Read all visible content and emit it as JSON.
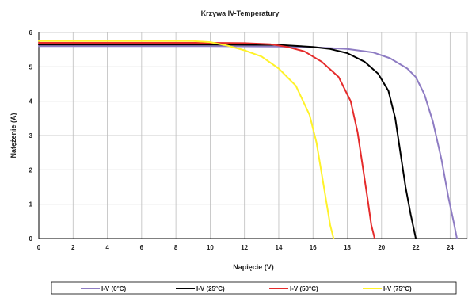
{
  "chart_data": {
    "type": "line",
    "title": "Krzywa IV-Temperatury",
    "xlabel": "Napięcie (V)",
    "ylabel": "Natężenie (A)",
    "xlim": [
      0,
      25
    ],
    "ylim": [
      0,
      6
    ],
    "xticks": [
      "0",
      "2",
      "4",
      "6",
      "8",
      "10",
      "12",
      "14",
      "16",
      "18",
      "20",
      "22",
      "24"
    ],
    "yticks": [
      "0",
      "1",
      "2",
      "3",
      "4",
      "5",
      "6"
    ],
    "grid": true,
    "legend_position": "bottom",
    "series": [
      {
        "name": "I-V (0°C)",
        "color": "#8e7cc3",
        "points": [
          [
            0,
            5.6
          ],
          [
            10,
            5.6
          ],
          [
            14,
            5.59
          ],
          [
            16,
            5.57
          ],
          [
            18,
            5.52
          ],
          [
            19.5,
            5.42
          ],
          [
            20.5,
            5.25
          ],
          [
            21.5,
            4.95
          ],
          [
            22,
            4.7
          ],
          [
            22.5,
            4.2
          ],
          [
            23,
            3.4
          ],
          [
            23.5,
            2.3
          ],
          [
            23.9,
            1.2
          ],
          [
            24.2,
            0.5
          ],
          [
            24.4,
            0
          ]
        ]
      },
      {
        "name": "I-V (25°C)",
        "color": "#000000",
        "points": [
          [
            0,
            5.65
          ],
          [
            10,
            5.65
          ],
          [
            14,
            5.64
          ],
          [
            16,
            5.58
          ],
          [
            17,
            5.52
          ],
          [
            18,
            5.4
          ],
          [
            19,
            5.15
          ],
          [
            19.8,
            4.8
          ],
          [
            20.4,
            4.3
          ],
          [
            20.8,
            3.5
          ],
          [
            21.1,
            2.5
          ],
          [
            21.4,
            1.5
          ],
          [
            21.7,
            0.7
          ],
          [
            22,
            0
          ]
        ]
      },
      {
        "name": "I-V (50°C)",
        "color": "#e52b2b",
        "points": [
          [
            0,
            5.7
          ],
          [
            10,
            5.7
          ],
          [
            12,
            5.69
          ],
          [
            13.5,
            5.66
          ],
          [
            14.5,
            5.58
          ],
          [
            15.5,
            5.45
          ],
          [
            16.5,
            5.15
          ],
          [
            17.5,
            4.7
          ],
          [
            18.2,
            4.0
          ],
          [
            18.6,
            3.1
          ],
          [
            18.9,
            2.1
          ],
          [
            19.2,
            1.1
          ],
          [
            19.4,
            0.4
          ],
          [
            19.6,
            0
          ]
        ]
      },
      {
        "name": "I-V (75°C)",
        "color": "#fff22a",
        "points": [
          [
            0,
            5.75
          ],
          [
            9,
            5.75
          ],
          [
            10,
            5.72
          ],
          [
            11,
            5.62
          ],
          [
            12,
            5.48
          ],
          [
            13,
            5.3
          ],
          [
            14,
            4.95
          ],
          [
            15,
            4.45
          ],
          [
            15.8,
            3.6
          ],
          [
            16.2,
            2.8
          ],
          [
            16.5,
            1.9
          ],
          [
            16.8,
            1.0
          ],
          [
            17.0,
            0.4
          ],
          [
            17.2,
            0
          ]
        ]
      }
    ]
  }
}
